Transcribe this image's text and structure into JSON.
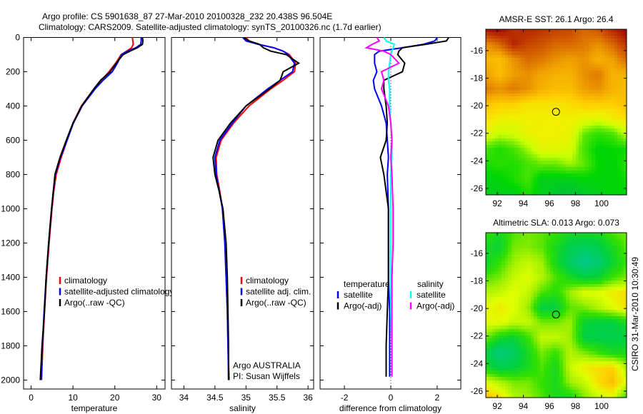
{
  "title": {
    "line1": "Argo profile: CS 5901638_87 27-Mar-2010 20100328_232 20.438S 96.504E",
    "line2": "Climatology: CARS2009. Satellite-adjusted climatology: synTS_20100326.nc (1.7d earlier)"
  },
  "footer_stamp": "CSIRO 31-Mar-2010 10:30:49",
  "chart_data": [
    {
      "id": "temperature",
      "type": "line",
      "xlabel": "temperature",
      "ylabel": "",
      "xlim": [
        -1.8,
        32
      ],
      "ylim": [
        2052,
        0
      ],
      "xticks": [
        0,
        10,
        20,
        30
      ],
      "yticks": [
        0,
        200,
        400,
        600,
        800,
        1000,
        1200,
        1400,
        1600,
        1800,
        2000
      ],
      "depth": [
        0,
        20,
        40,
        60,
        80,
        100,
        150,
        200,
        250,
        300,
        400,
        500,
        600,
        700,
        800,
        900,
        1000,
        1200,
        1400,
        1600,
        1800,
        2000
      ],
      "series": [
        {
          "name": "climatology",
          "color": "#ff0000",
          "values": [
            24.2,
            24.3,
            24.4,
            24.0,
            22.8,
            21.5,
            20.2,
            18.6,
            16.8,
            15.0,
            12.0,
            10.0,
            8.6,
            7.2,
            6.0,
            5.4,
            5.0,
            4.3,
            3.7,
            3.2,
            2.8,
            2.5
          ]
        },
        {
          "name": "satellite-adjusted climatology",
          "color": "#0000ff",
          "values": [
            26.3,
            26.3,
            26.2,
            25.0,
            23.0,
            21.6,
            20.6,
            19.4,
            17.2,
            15.3,
            12.2,
            10.1,
            8.6,
            7.0,
            5.8,
            5.3,
            4.9,
            4.2,
            3.6,
            3.1,
            2.7,
            2.4
          ]
        },
        {
          "name": "Argo(..raw -QC)",
          "color": "#000000",
          "values": [
            26.6,
            26.7,
            26.6,
            25.4,
            23.6,
            22.0,
            20.3,
            18.9,
            16.6,
            15.0,
            12.1,
            10.0,
            8.4,
            6.9,
            5.7,
            5.3,
            4.9,
            4.2,
            3.6,
            3.2,
            2.6,
            2.2
          ]
        }
      ],
      "legend": [
        "climatology",
        "satellite-adjusted climatology",
        "Argo(..raw -QC)"
      ],
      "legend_placement": "bottom-center"
    },
    {
      "id": "salinity",
      "type": "line",
      "xlabel": "salinity",
      "xlim": [
        33.8,
        36.09
      ],
      "ylim": [
        2052,
        0
      ],
      "xticks": [
        34,
        34.5,
        35,
        35.5,
        36
      ],
      "depth": [
        0,
        20,
        40,
        60,
        80,
        100,
        150,
        200,
        250,
        300,
        400,
        500,
        600,
        700,
        800,
        900,
        1000,
        1200,
        1400,
        1600,
        1800,
        2000
      ],
      "series": [
        {
          "name": "climatology",
          "color": "#ff0000",
          "values": [
            35.0,
            35.05,
            35.2,
            35.45,
            35.6,
            35.7,
            35.8,
            35.78,
            35.6,
            35.4,
            35.05,
            34.8,
            34.6,
            34.52,
            34.53,
            34.58,
            34.62,
            34.66,
            34.68,
            34.7,
            34.71,
            34.73
          ]
        },
        {
          "name": "satellite adj. clim.",
          "color": "#0000ff",
          "values": [
            34.95,
            35.0,
            35.2,
            35.45,
            35.6,
            35.68,
            35.78,
            35.75,
            35.55,
            35.35,
            35.0,
            34.78,
            34.58,
            34.5,
            34.52,
            34.57,
            34.62,
            34.66,
            34.68,
            34.7,
            34.71,
            34.72
          ]
        },
        {
          "name": "Argo(..raw -QC)",
          "color": "#000000",
          "values": [
            34.96,
            35.05,
            35.22,
            35.28,
            35.4,
            35.65,
            35.85,
            35.6,
            35.55,
            35.38,
            35.0,
            34.75,
            34.55,
            34.47,
            34.5,
            34.57,
            34.63,
            34.68,
            34.7,
            34.71,
            34.72,
            34.72
          ]
        }
      ],
      "legend": [
        "climatology",
        "satellite adj. clim.",
        "Argo(..raw -QC)"
      ],
      "annotation": [
        "Argo AUSTRALIA",
        "PI: Susan Wijffels"
      ]
    },
    {
      "id": "difference",
      "type": "line",
      "xlabel": "difference from climatology",
      "xlim": [
        -3.05,
        3.02
      ],
      "ylim": [
        2052,
        0
      ],
      "xticks": [
        -2,
        0,
        2
      ],
      "depth": [
        0,
        20,
        40,
        60,
        80,
        100,
        150,
        200,
        250,
        300,
        400,
        500,
        600,
        700,
        800,
        1000,
        1200,
        1400,
        1600,
        1800,
        1980
      ],
      "series": [
        {
          "name": "temperature satellite",
          "color": "#0000ff",
          "values": [
            2.0,
            1.9,
            1.4,
            0.5,
            -0.5,
            -0.7,
            -0.7,
            -0.6,
            -0.75,
            -0.7,
            -0.4,
            -0.2,
            -0.15,
            -0.1,
            -0.15,
            -0.1,
            -0.1,
            -0.1,
            -0.05,
            -0.05,
            -0.05
          ]
        },
        {
          "name": "temperature Argo(-adj)",
          "color": "#000000",
          "values": [
            2.5,
            2.4,
            1.5,
            0.5,
            0.35,
            0.3,
            0.6,
            0.5,
            -0.3,
            -0.3,
            -0.2,
            -0.15,
            -0.2,
            -0.45,
            -0.3,
            -0.1,
            -0.1,
            -0.1,
            -0.15,
            -0.2,
            -0.2
          ]
        },
        {
          "name": "salinity satellite",
          "color": "#00ffff",
          "values": [
            -0.3,
            -0.2,
            0.15,
            0.1,
            0.05,
            0.0,
            -0.05,
            -0.1,
            -0.1,
            -0.05,
            -0.05,
            0.0,
            0.05,
            0.05,
            0.0,
            0.0,
            0.0,
            0.0,
            0.0,
            0.05,
            0.05
          ]
        },
        {
          "name": "salinity Argo(-adj)",
          "color": "#ff00ff",
          "values": [
            -0.6,
            -0.5,
            -0.8,
            -1.05,
            -0.3,
            0.0,
            0.35,
            -0.4,
            -0.3,
            -0.4,
            -0.1,
            0.0,
            0.05,
            0.0,
            0.05,
            0.1,
            0.1,
            0.05,
            0.05,
            0.05,
            0.05
          ]
        }
      ],
      "legend_headers": [
        "temperature",
        "salinity"
      ],
      "legend": [
        "satellite",
        "Argo(-adj)",
        "satellite",
        "Argo(-adj)"
      ]
    },
    {
      "id": "sst_map",
      "type": "heatmap",
      "title": "AMSR-E SST: 26.1 Argo: 26.4",
      "xlim": [
        91.12,
        101.92
      ],
      "ylim": [
        -26.47,
        -14.45
      ],
      "xticks": [
        92,
        94,
        96,
        98,
        100
      ],
      "yticks": [
        -16,
        -18,
        -20,
        -22,
        -24,
        -26
      ],
      "marker": {
        "lon": 96.504,
        "lat": -20.438
      },
      "colormap": [
        [
          23.5,
          "#00c040"
        ],
        [
          24.3,
          "#00d800"
        ],
        [
          25.0,
          "#60e800"
        ],
        [
          25.5,
          "#c8ff00"
        ],
        [
          26.0,
          "#f0f000"
        ],
        [
          26.5,
          "#ffd000"
        ],
        [
          27.3,
          "#f0a000"
        ],
        [
          28.0,
          "#d86800"
        ],
        [
          28.7,
          "#c03800"
        ],
        [
          29.5,
          "#a00000"
        ]
      ],
      "grid": [
        [
          29.3,
          29.5,
          28.8,
          29,
          28.8,
          28.6,
          28.5,
          28,
          28.3,
          29,
          29.5
        ],
        [
          27.5,
          28,
          29,
          28.5,
          28.3,
          28,
          28,
          27.8,
          27.5,
          28,
          28.8
        ],
        [
          27,
          26.8,
          27.5,
          28,
          27.8,
          27.5,
          27.3,
          27.5,
          27,
          27.3,
          28
        ],
        [
          27.3,
          26.8,
          27.3,
          27.5,
          27.2,
          27,
          27,
          27.5,
          27.8,
          27,
          27
        ],
        [
          27.8,
          27.5,
          27.8,
          27.5,
          27,
          26.8,
          26.8,
          27.3,
          27.5,
          27,
          26.8
        ],
        [
          26.8,
          26.5,
          26.5,
          26.2,
          26.2,
          26.2,
          26.3,
          26.5,
          26.5,
          26.5,
          26.8
        ],
        [
          26.2,
          26,
          25.9,
          26,
          26,
          26,
          26,
          25.8,
          25.7,
          26.0,
          26.2
        ],
        [
          25.8,
          25.5,
          25.6,
          25.9,
          26,
          26,
          25.9,
          25,
          24.6,
          24.8,
          25.5
        ],
        [
          24.8,
          24.5,
          24.8,
          25.3,
          25.8,
          25.8,
          25.7,
          24.8,
          24.2,
          24.3,
          24.4
        ],
        [
          24.5,
          24.6,
          24.5,
          24.8,
          25,
          25,
          25.3,
          25,
          24.3,
          24.2,
          24.6
        ],
        [
          24,
          24.2,
          24.5,
          24.8,
          24,
          24,
          24,
          24.2,
          24.2,
          24.2,
          24.4
        ],
        [
          24,
          24,
          24,
          24.5,
          24,
          23.7,
          23.6,
          23.8,
          24,
          24.3,
          24
        ]
      ]
    },
    {
      "id": "sla_map",
      "type": "heatmap",
      "title": "Altimetric SLA: 0.013 Argo: 0.073",
      "xlim": [
        91.12,
        101.92
      ],
      "ylim": [
        -26.47,
        -14.5
      ],
      "xticks": [
        92,
        94,
        96,
        98,
        100
      ],
      "yticks": [
        -16,
        -18,
        -20,
        -22,
        -24,
        -26
      ],
      "marker": {
        "lon": 96.504,
        "lat": -20.438
      },
      "colormap": [
        [
          -0.25,
          "#00c8a0"
        ],
        [
          -0.1,
          "#00d040"
        ],
        [
          0.0,
          "#30e000"
        ],
        [
          0.08,
          "#a0f000"
        ],
        [
          0.15,
          "#e0ff00"
        ],
        [
          0.22,
          "#ffd000"
        ],
        [
          0.3,
          "#f0a000"
        ]
      ],
      "grid": [
        [
          0.0,
          -0.05,
          0.02,
          0.05,
          0.03,
          0.0,
          -0.05,
          -0.05,
          -0.05,
          0.02,
          0.05
        ],
        [
          -0.05,
          -0.08,
          0.05,
          0.06,
          0.03,
          -0.05,
          -0.12,
          -0.15,
          -0.12,
          -0.05,
          0.03
        ],
        [
          -0.08,
          0.0,
          0.08,
          0.12,
          0.08,
          -0.05,
          -0.15,
          -0.22,
          -0.18,
          -0.08,
          0.0
        ],
        [
          0.02,
          0.05,
          0.12,
          0.15,
          0.1,
          0.02,
          -0.05,
          -0.1,
          -0.08,
          0.0,
          0.05
        ],
        [
          0.1,
          0.12,
          0.15,
          0.12,
          0.02,
          -0.02,
          0.08,
          0.15,
          0.15,
          0.18,
          0.2
        ],
        [
          0.15,
          0.18,
          0.15,
          0.08,
          -0.1,
          -0.1,
          0.03,
          0.05,
          0.1,
          0.15,
          0.2
        ],
        [
          0.15,
          0.16,
          0.12,
          0.12,
          0.05,
          0.05,
          0.08,
          -0.08,
          -0.1,
          -0.1,
          -0.05
        ],
        [
          0.05,
          -0.05,
          -0.08,
          0.0,
          0.12,
          0.12,
          0.08,
          -0.1,
          -0.12,
          -0.12,
          -0.1
        ],
        [
          -0.1,
          -0.2,
          -0.15,
          -0.05,
          0.05,
          0.0,
          0.1,
          0.05,
          0.0,
          -0.05,
          -0.05
        ],
        [
          -0.05,
          -0.12,
          -0.1,
          -0.05,
          0.02,
          -0.05,
          0.12,
          0.18,
          0.2,
          0.22,
          0.1
        ],
        [
          0.15,
          0.1,
          0.05,
          0.05,
          0.0,
          -0.05,
          0.08,
          0.12,
          0.2,
          0.25,
          0.15
        ],
        [
          0.25,
          0.2,
          0.1,
          0.08,
          0.02,
          -0.05,
          -0.05,
          0.05,
          0.12,
          0.15,
          0.0
        ]
      ]
    }
  ]
}
